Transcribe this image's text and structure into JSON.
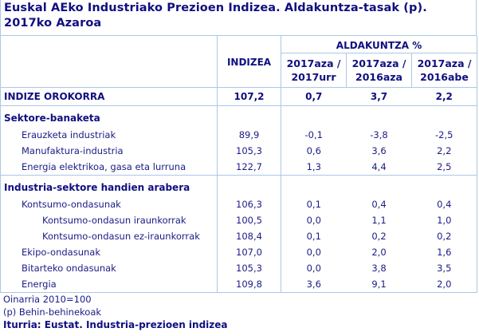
{
  "title": "Euskal AEko Industriako Prezioen Indizea. Aldakuntza-tasak (p). 2017ko Azaroa",
  "header": {
    "index_label": "INDIZEA",
    "group_label": "ALDAKUNTZA %",
    "change_columns": [
      {
        "line1": "2017aza /",
        "line2": "2017urr"
      },
      {
        "line1": "2017aza /",
        "line2": "2016aza"
      },
      {
        "line1": "2017aza /",
        "line2": "2016abe"
      }
    ]
  },
  "total": {
    "label": "INDIZE OROKORRA",
    "index": "107,2",
    "changes": [
      "0,7",
      "3,7",
      "2,2"
    ]
  },
  "sections": [
    {
      "title": "Sektore-banaketa",
      "rows": [
        {
          "label": "Erauzketa industriak",
          "level": 1,
          "index": "89,9",
          "changes": [
            "-0,1",
            "-3,8",
            "-2,5"
          ]
        },
        {
          "label": "Manufaktura-industria",
          "level": 1,
          "index": "105,3",
          "changes": [
            "0,6",
            "3,6",
            "2,2"
          ]
        },
        {
          "label": "Energia elektrikoa, gasa eta lurruna",
          "level": 1,
          "index": "122,7",
          "changes": [
            "1,3",
            "4,4",
            "2,5"
          ]
        }
      ]
    },
    {
      "title": "Industria-sektore handien arabera",
      "rows": [
        {
          "label": "Kontsumo-ondasunak",
          "level": 1,
          "index": "106,3",
          "changes": [
            "0,1",
            "0,4",
            "0,4"
          ]
        },
        {
          "label": "Kontsumo-ondasun iraunkorrak",
          "level": 2,
          "index": "100,5",
          "changes": [
            "0,0",
            "1,1",
            "1,0"
          ]
        },
        {
          "label": "Kontsumo-ondasun ez-iraunkorrak",
          "level": 2,
          "index": "108,4",
          "changes": [
            "0,1",
            "0,2",
            "0,2"
          ]
        },
        {
          "label": "Ekipo-ondasunak",
          "level": 1,
          "index": "107,0",
          "changes": [
            "0,0",
            "2,0",
            "1,6"
          ]
        },
        {
          "label": "Bitarteko ondasunak",
          "level": 1,
          "index": "105,3",
          "changes": [
            "0,0",
            "3,8",
            "3,5"
          ]
        },
        {
          "label": "Energia",
          "level": 1,
          "index": "109,8",
          "changes": [
            "3,6",
            "9,1",
            "2,0"
          ]
        }
      ]
    }
  ],
  "notes": {
    "base": "Oinarria 2010=100",
    "provisional": "(p) Behin-behinekoak",
    "source": "Iturria: Eustat. Industria-prezioen indizea"
  },
  "colors": {
    "text": "#1b1b86",
    "heading_text": "#0f0f80",
    "border": "#a9c8e8",
    "background": "#ffffff"
  }
}
